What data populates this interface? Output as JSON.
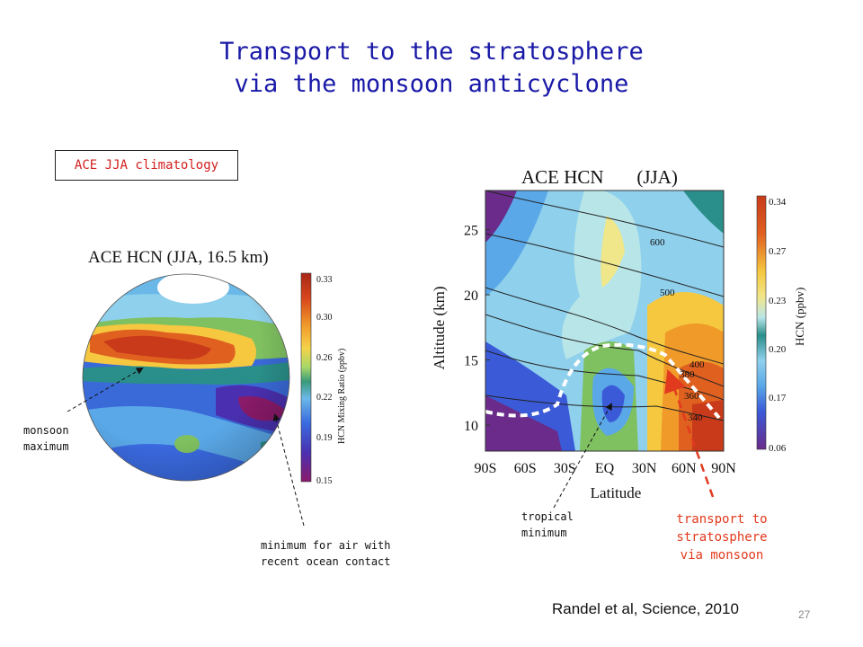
{
  "slide": {
    "title_line1": "Transport to the stratosphere",
    "title_line2": "via the monsoon anticyclone",
    "box_label": "ACE JJA climatology",
    "citation": "Randel et al, Science, 2010",
    "page_number": "27"
  },
  "annotations": {
    "monsoon_max": [
      "monsoon",
      "maximum"
    ],
    "ocean_min": [
      "minimum for air with",
      "recent ocean contact"
    ],
    "tropical_min": [
      "tropical",
      "minimum"
    ],
    "transport": [
      "transport to",
      "stratosphere",
      "via monsoon"
    ]
  },
  "globe_map": {
    "title": "ACE HCN  (JJA, 16.5 km)",
    "colorbar_label": "HCN Mixing Ratio  (ppbv)",
    "colorbar_ticks": [
      "0.33",
      "0.30",
      "0.26",
      "0.22",
      "0.19",
      "0.15"
    ]
  },
  "colors": {
    "title": "#1a1aa8",
    "box_text": "#d22020",
    "transport": "#e23a1e",
    "scale": [
      "#6a2b8a",
      "#4a3fc0",
      "#3a6ae0",
      "#5aa8e8",
      "#8fd0ec",
      "#b8e6e8",
      "#2a8f8a",
      "#7fc060",
      "#c8e070",
      "#f0e68a",
      "#f5c840",
      "#f09a2a",
      "#e06020",
      "#c83a1a",
      "#a82818"
    ]
  },
  "chart_data": {
    "type": "heatmap",
    "title": "ACE HCN       (JJA)",
    "xlabel": "Latitude",
    "ylabel": "Altitude (km)",
    "x_ticks": [
      "90S",
      "60S",
      "30S",
      "EQ",
      "30N",
      "60N",
      "90N"
    ],
    "xlim": [
      -90,
      90
    ],
    "y_ticks": [
      10,
      15,
      20,
      25
    ],
    "ylim": [
      8,
      28
    ],
    "colorbar_label": "HCN (ppbv)",
    "colorbar_ticks": [
      "0.34",
      "0.27",
      "0.23",
      "0.20",
      "0.17",
      "0.06"
    ],
    "contour_labels": [
      "600",
      "500",
      "400",
      "380",
      "360",
      "340"
    ]
  }
}
